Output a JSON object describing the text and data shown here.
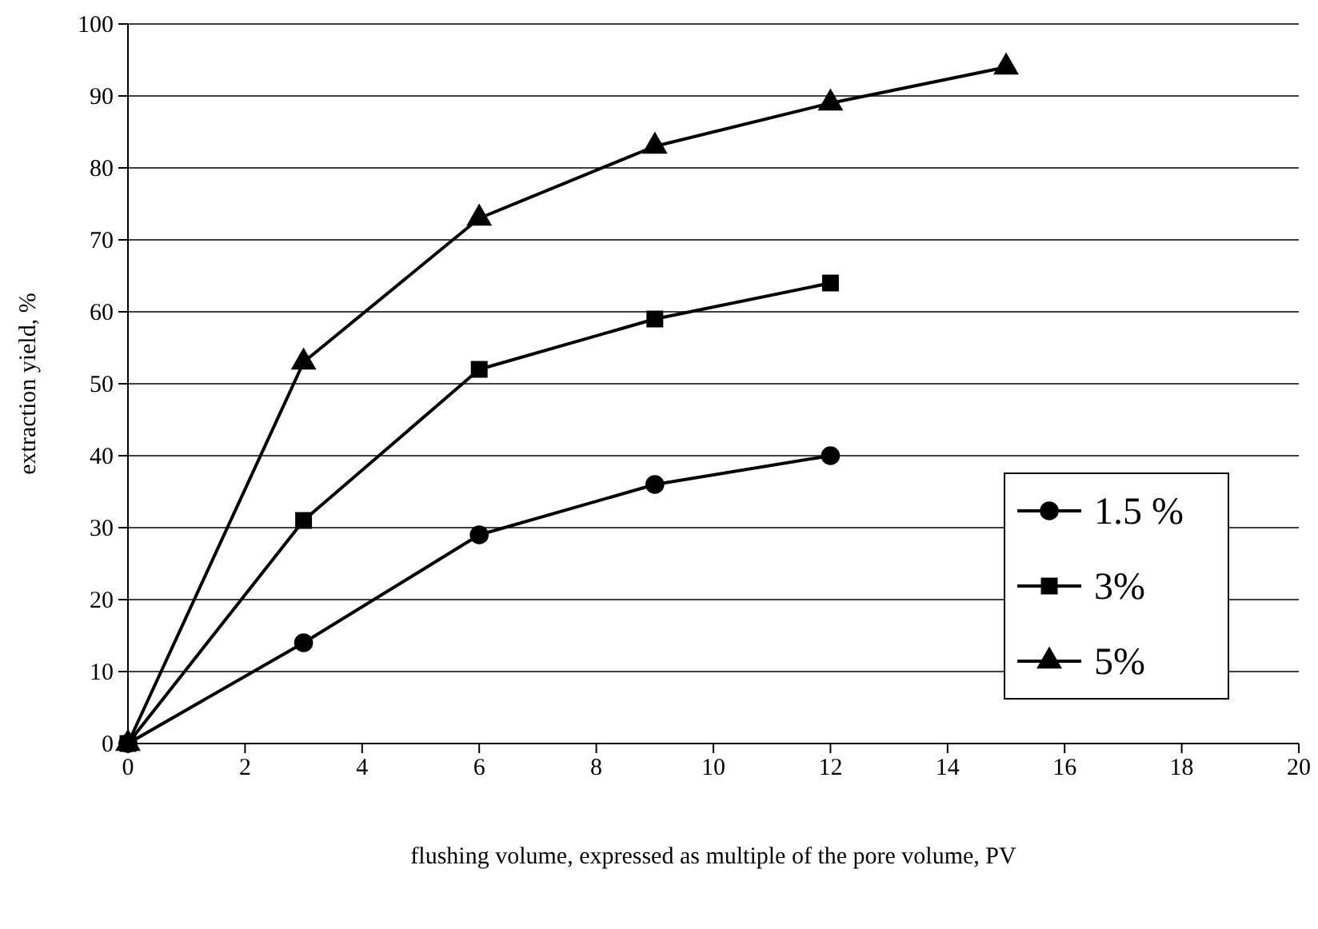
{
  "chart_data": {
    "type": "line",
    "xlabel": "flushing volume, expressed as multiple of the pore volume, PV",
    "ylabel": "extraction yield, %",
    "xlim": [
      0,
      20
    ],
    "xticks": [
      0,
      2,
      4,
      6,
      8,
      10,
      12,
      14,
      16,
      18,
      20
    ],
    "ylim": [
      0,
      100
    ],
    "yticks": [
      0,
      10,
      20,
      30,
      40,
      50,
      60,
      70,
      80,
      90,
      100
    ],
    "grid": "y",
    "legend": "right",
    "series": [
      {
        "name": "1.5 %",
        "color": "#000000",
        "marker": "circle",
        "x": [
          0,
          3,
          6,
          9,
          12
        ],
        "values": [
          0,
          14,
          29,
          36,
          40
        ]
      },
      {
        "name": "3%",
        "color": "#000000",
        "marker": "square",
        "x": [
          0,
          3,
          6,
          9,
          12
        ],
        "values": [
          0,
          31,
          52,
          59,
          64
        ]
      },
      {
        "name": "5%",
        "color": "#000000",
        "marker": "triangle",
        "x": [
          0,
          3,
          6,
          9,
          12,
          15
        ],
        "values": [
          0,
          53,
          73,
          83,
          89,
          94
        ]
      }
    ]
  }
}
